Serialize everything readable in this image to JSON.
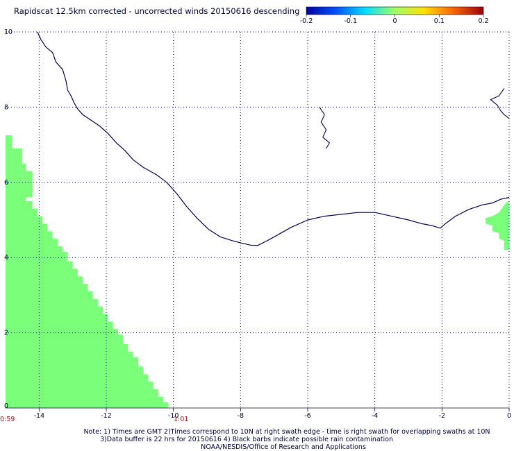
{
  "chart_data": {
    "type": "map",
    "title": "Rapidscat 12.5km corrected - uncorrected winds 20150616 descending",
    "colorbar": {
      "min": -0.2,
      "max": 0.2,
      "tick_labels": [
        "-0.2",
        "-0.1",
        "0",
        "0.1",
        "0.2"
      ],
      "colors": [
        "#0000a0",
        "#0050ff",
        "#00e0ff",
        "#a0ff60",
        "#ffe000",
        "#ff6000",
        "#a00000"
      ]
    },
    "x_axis": {
      "range": [
        -15,
        0
      ],
      "tick_labels": [
        "-14",
        "-12",
        "-10",
        "-8",
        "-6",
        "-4",
        "-2",
        "0"
      ]
    },
    "y_axis": {
      "range": [
        0,
        10
      ],
      "tick_labels": [
        "0",
        "2",
        "4",
        "6",
        "8",
        "10"
      ]
    },
    "grid": true,
    "time_labels": {
      "left": "0:59",
      "right": "1:01"
    },
    "swath_color": "#7bff7b",
    "coast_color": "#000050",
    "swath_steps": [
      [
        0.0,
        0.15
      ],
      [
        0.15,
        0.3
      ],
      [
        0.3,
        0.5
      ],
      [
        0.5,
        0.7
      ],
      [
        0.7,
        0.9
      ],
      [
        0.9,
        1.1
      ],
      [
        1.1,
        1.35
      ],
      [
        1.35,
        1.5
      ],
      [
        1.5,
        1.7
      ],
      [
        1.7,
        1.95
      ],
      [
        1.95,
        2.1
      ],
      [
        2.1,
        2.3
      ],
      [
        2.3,
        2.5
      ],
      [
        2.5,
        2.7
      ],
      [
        2.7,
        2.9
      ],
      [
        2.9,
        3.1
      ],
      [
        3.1,
        3.3
      ],
      [
        3.3,
        3.5
      ],
      [
        3.5,
        3.7
      ],
      [
        3.7,
        3.9
      ],
      [
        3.9,
        4.15
      ],
      [
        4.15,
        4.3
      ],
      [
        4.3,
        4.5
      ],
      [
        4.5,
        4.7
      ],
      [
        4.7,
        4.9
      ],
      [
        4.9,
        5.1
      ],
      [
        5.1,
        5.3
      ],
      [
        5.3,
        5.5
      ],
      [
        5.5,
        5.65
      ]
    ],
    "swath_edge_x": [
      -10.15,
      -10.3,
      -10.45,
      -10.6,
      -10.75,
      -10.9,
      -11.05,
      -11.2,
      -11.35,
      -11.5,
      -11.65,
      -11.8,
      -11.95,
      -12.1,
      -12.25,
      -12.4,
      -12.55,
      -12.7,
      -12.85,
      -13.0,
      -13.15,
      -13.3,
      -13.45,
      -13.6,
      -13.75,
      -13.9,
      -14.05,
      -14.2,
      -14.4
    ],
    "swath_top_steps": [
      {
        "x": [
          -14.8,
          -14.4
        ],
        "y": 6.05
      },
      {
        "x": [
          -15.0,
          -14.8
        ],
        "y": 7.25
      },
      {
        "x": [
          -14.8,
          -14.5
        ],
        "y": 6.9
      },
      {
        "x": [
          -14.5,
          -14.4
        ],
        "y": 6.5
      },
      {
        "x": [
          -14.4,
          -14.2
        ],
        "y": 6.3
      }
    ],
    "east_swath": [
      [
        -0.7,
        5.05
      ],
      [
        -0.5,
        5.1
      ],
      [
        -0.3,
        5.2
      ],
      [
        -0.1,
        5.45
      ],
      [
        0.0,
        5.5
      ],
      [
        0.0,
        4.2
      ],
      [
        -0.15,
        4.2
      ],
      [
        -0.15,
        4.45
      ],
      [
        -0.3,
        4.5
      ],
      [
        -0.3,
        4.65
      ],
      [
        -0.5,
        4.7
      ],
      [
        -0.5,
        4.85
      ],
      [
        -0.7,
        4.9
      ]
    ],
    "coastline": [
      [
        -14.05,
        10.0
      ],
      [
        -13.95,
        9.8
      ],
      [
        -13.8,
        9.6
      ],
      [
        -13.6,
        9.45
      ],
      [
        -13.5,
        9.2
      ],
      [
        -13.3,
        9.0
      ],
      [
        -13.2,
        8.7
      ],
      [
        -13.15,
        8.45
      ],
      [
        -13.05,
        8.3
      ],
      [
        -12.95,
        8.1
      ],
      [
        -12.85,
        7.95
      ],
      [
        -12.7,
        7.8
      ],
      [
        -12.45,
        7.65
      ],
      [
        -12.2,
        7.5
      ],
      [
        -11.95,
        7.3
      ],
      [
        -11.7,
        7.05
      ],
      [
        -11.45,
        6.85
      ],
      [
        -11.2,
        6.6
      ],
      [
        -10.9,
        6.4
      ],
      [
        -10.5,
        6.2
      ],
      [
        -10.2,
        6.0
      ],
      [
        -9.9,
        5.7
      ],
      [
        -9.6,
        5.35
      ],
      [
        -9.3,
        5.05
      ],
      [
        -8.95,
        4.75
      ],
      [
        -8.6,
        4.55
      ],
      [
        -8.25,
        4.45
      ],
      [
        -7.95,
        4.38
      ],
      [
        -7.7,
        4.33
      ],
      [
        -7.5,
        4.32
      ],
      [
        -7.2,
        4.45
      ],
      [
        -6.9,
        4.6
      ],
      [
        -6.5,
        4.8
      ],
      [
        -6.0,
        5.0
      ],
      [
        -5.5,
        5.1
      ],
      [
        -5.0,
        5.15
      ],
      [
        -4.5,
        5.2
      ],
      [
        -4.0,
        5.2
      ],
      [
        -3.5,
        5.1
      ],
      [
        -3.0,
        5.0
      ],
      [
        -2.6,
        4.9
      ],
      [
        -2.3,
        4.85
      ],
      [
        -2.05,
        4.78
      ],
      [
        -1.9,
        4.9
      ],
      [
        -1.6,
        5.1
      ],
      [
        -1.2,
        5.28
      ],
      [
        -0.8,
        5.4
      ],
      [
        -0.5,
        5.45
      ],
      [
        -0.25,
        5.55
      ],
      [
        0.0,
        5.6
      ]
    ],
    "lake_volta": [
      [
        -0.15,
        8.5
      ],
      [
        -0.3,
        8.3
      ],
      [
        -0.55,
        8.2
      ],
      [
        -0.35,
        8.05
      ],
      [
        -0.25,
        7.9
      ],
      [
        -0.15,
        7.8
      ],
      [
        0.0,
        7.7
      ]
    ],
    "kossou_lake": [
      [
        -5.65,
        8.0
      ],
      [
        -5.5,
        7.8
      ],
      [
        -5.6,
        7.6
      ],
      [
        -5.45,
        7.4
      ],
      [
        -5.55,
        7.2
      ],
      [
        -5.35,
        7.05
      ],
      [
        -5.45,
        6.9
      ]
    ],
    "notes": [
      "Note: 1) Times are GMT 2)Times correspond to 10N at right swath edge - time is right swath for overlapping swaths at 10N",
      "3)Data buffer is 22 hrs for 20150616 4) Black barbs indicate possible rain contamination",
      "NOAA/NESDIS/Office of Research and Applications"
    ]
  }
}
